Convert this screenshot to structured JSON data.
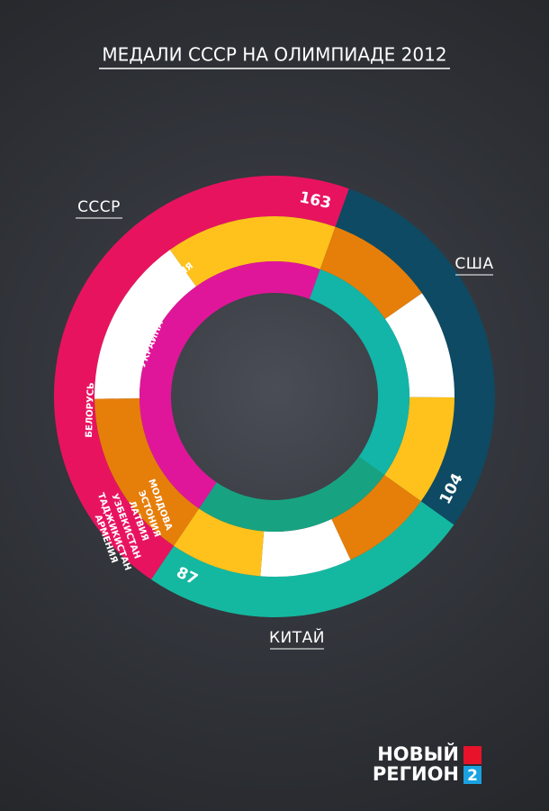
{
  "chart_data": {
    "type": "sunburst",
    "title": "МЕДАЛИ СССР НА ОЛИМПИАДЕ 2012",
    "categories": [
      "СССР",
      "США",
      "КИТАЙ"
    ],
    "values": [
      163,
      104,
      87
    ],
    "colors": [
      "#e8135f",
      "#0e4a63",
      "#14b8a0"
    ],
    "inner_colors": [
      "#e0169a",
      "#12b5a8",
      "#17a381"
    ],
    "republics": [
      "РОССИЯ",
      "УКРАИНА",
      "КАЗАХСТАН",
      "БЕЛОРУСЬ",
      "МОЛДОВА",
      "ЭСТОНИЯ",
      "ЛАТВИЯ",
      "УЗБЕКИСТАН",
      "ТАДЖИКИСТАН",
      "АРМЕНИЯ"
    ]
  },
  "logo": {
    "line1": "НОВЫЙ",
    "line2": "РЕГИОН",
    "badge": "2"
  }
}
